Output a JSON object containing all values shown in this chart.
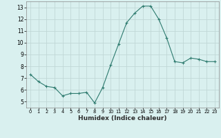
{
  "x": [
    0,
    1,
    2,
    3,
    4,
    5,
    6,
    7,
    8,
    9,
    10,
    11,
    12,
    13,
    14,
    15,
    16,
    17,
    18,
    19,
    20,
    21,
    22,
    23
  ],
  "y": [
    7.3,
    6.7,
    6.3,
    6.2,
    5.5,
    5.7,
    5.7,
    5.8,
    4.9,
    6.2,
    8.1,
    9.9,
    11.7,
    12.5,
    13.1,
    13.1,
    12.0,
    10.4,
    8.4,
    8.3,
    8.7,
    8.6,
    8.4,
    8.4
  ],
  "xlabel": "Humidex (Indice chaleur)",
  "ylim": [
    4.5,
    13.5
  ],
  "xlim": [
    -0.5,
    23.5
  ],
  "yticks": [
    5,
    6,
    7,
    8,
    9,
    10,
    11,
    12,
    13
  ],
  "xtick_labels": [
    "0",
    "1",
    "2",
    "3",
    "4",
    "5",
    "6",
    "7",
    "8",
    "9",
    "10",
    "11",
    "12",
    "13",
    "14",
    "15",
    "16",
    "17",
    "18",
    "19",
    "20",
    "21",
    "22",
    "23"
  ],
  "line_color": "#2d7a6e",
  "marker": "+",
  "bg_color": "#d9f0ef",
  "grid_color": "#c0d8d6",
  "title": ""
}
